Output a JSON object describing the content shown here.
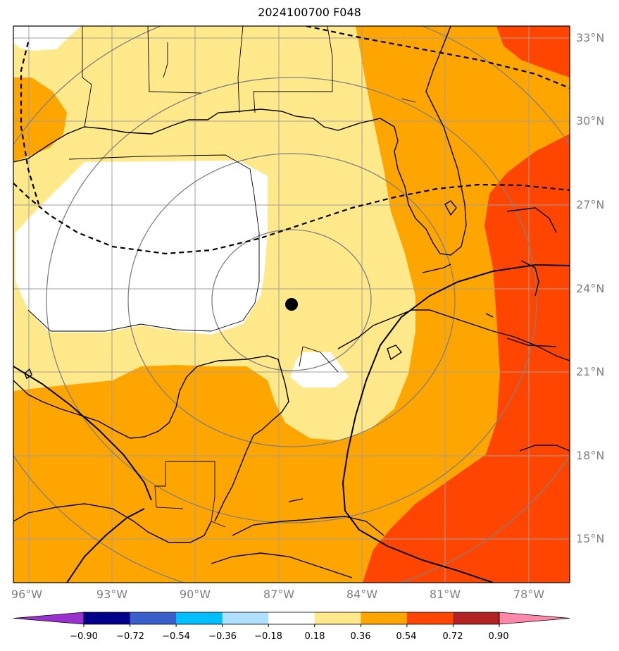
{
  "title": "2024100700 F048",
  "map": {
    "lat_labels": [
      "33°N",
      "30°N",
      "27°N",
      "24°N",
      "21°N",
      "18°N",
      "15°N"
    ],
    "lon_labels": [
      "96°W",
      "93°W",
      "90°W",
      "87°W",
      "84°W",
      "81°W",
      "78°W"
    ],
    "lat_range": [
      13.5,
      33.5
    ],
    "lon_range": [
      -96.0,
      -76.0
    ],
    "storm_center": {
      "lat": 23.4,
      "lon": -86.0
    },
    "colors": {
      "band_0_18_0_36": "#ffe98a",
      "band_0_36_0_54": "#ffa500",
      "band_0_54_0_72": "#ff4500",
      "band_below_0_18": "#ffffff",
      "gridlines": "#a0a0a0",
      "range_rings": "#808080",
      "coastline": "#000000"
    }
  },
  "colorbar": {
    "ticks": [
      "−0.90",
      "−0.72",
      "−0.54",
      "−0.36",
      "−0.18",
      "0.18",
      "0.36",
      "0.54",
      "0.72",
      "0.90"
    ],
    "colors": [
      "#9932cc",
      "#00008b",
      "#3a5fcd",
      "#00bfff",
      "#b0e0ff",
      "#ffffff",
      "#ffe98a",
      "#ffa500",
      "#ff4500",
      "#b22222",
      "#ff88aa"
    ]
  }
}
